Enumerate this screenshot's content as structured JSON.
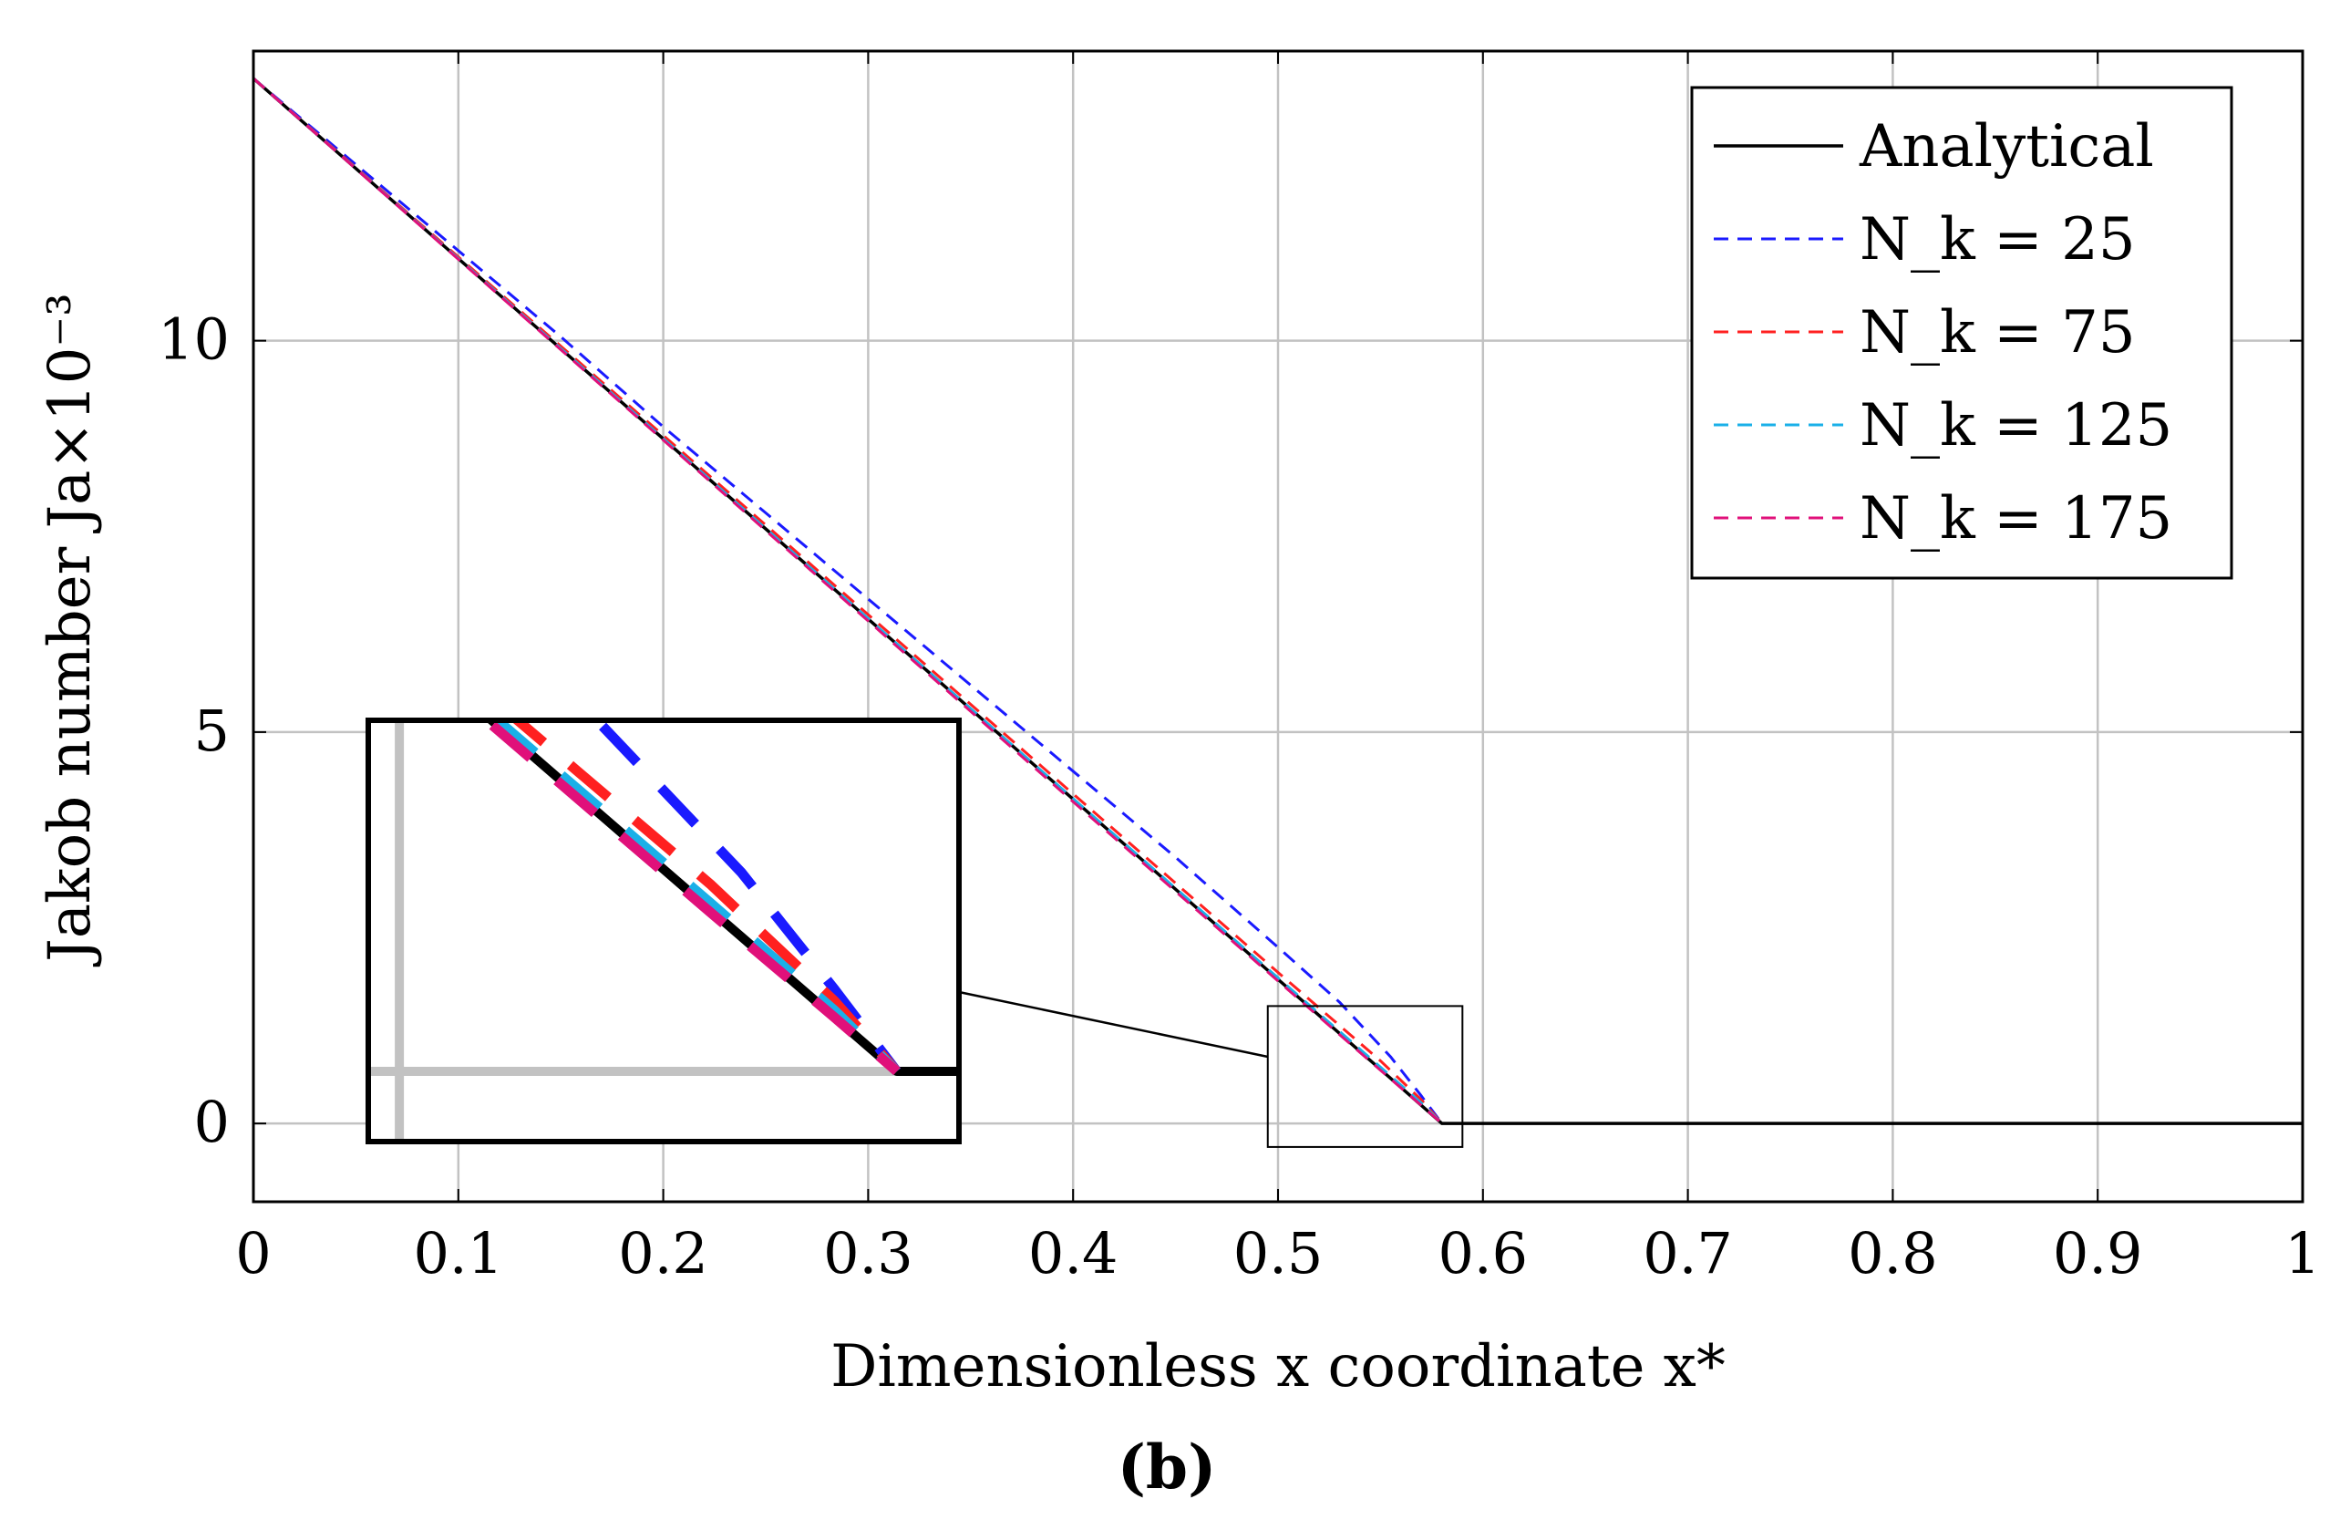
{
  "chart_data": {
    "type": "line",
    "xlabel": "Dimensionless x coordinate x*",
    "ylabel": "Jakob number Ja×10⁻³",
    "xlim": [
      0,
      1
    ],
    "ylim": [
      -1,
      13.7
    ],
    "grid": true,
    "x_ticks": [
      {
        "value": 0,
        "label": "0"
      },
      {
        "value": 0.1,
        "label": "0.1"
      },
      {
        "value": 0.2,
        "label": "0.2"
      },
      {
        "value": 0.3,
        "label": "0.3"
      },
      {
        "value": 0.4,
        "label": "0.4"
      },
      {
        "value": 0.5,
        "label": "0.5"
      },
      {
        "value": 0.6,
        "label": "0.6"
      },
      {
        "value": 0.7,
        "label": "0.7"
      },
      {
        "value": 0.8,
        "label": "0.8"
      },
      {
        "value": 0.9,
        "label": "0.9"
      },
      {
        "value": 1,
        "label": "1"
      }
    ],
    "y_ticks": [
      {
        "value": 0,
        "label": "0"
      },
      {
        "value": 5,
        "label": "5"
      },
      {
        "value": 10,
        "label": "10"
      }
    ],
    "legend_position": "top-right",
    "series": [
      {
        "name": "Analytical",
        "legend_label": "Analytical",
        "color": "#000000",
        "dash": "solid",
        "x": [
          0,
          0.58,
          1
        ],
        "y": [
          13.35,
          0,
          0
        ]
      },
      {
        "name": "N_k = 25",
        "legend_label": "N_k = 25",
        "color": "#1a1aff",
        "dash": "dashed",
        "x": [
          0,
          0.05,
          0.1,
          0.15,
          0.2,
          0.25,
          0.3,
          0.35,
          0.4,
          0.45,
          0.5,
          0.53,
          0.555,
          0.57,
          0.58
        ],
        "y": [
          13.35,
          12.25,
          11.15,
          10.05,
          8.9,
          7.8,
          6.7,
          5.6,
          4.5,
          3.4,
          2.25,
          1.55,
          0.85,
          0.35,
          0
        ]
      },
      {
        "name": "N_k = 75",
        "legend_label": "N_k = 75",
        "color": "#ff2020",
        "dash": "dashed",
        "x": [
          0,
          0.1,
          0.2,
          0.3,
          0.4,
          0.5,
          0.55,
          0.57,
          0.58
        ],
        "y": [
          13.35,
          11.07,
          8.79,
          6.5,
          4.21,
          1.93,
          0.8,
          0.3,
          0
        ]
      },
      {
        "name": "N_k = 125",
        "legend_label": "N_k = 125",
        "color": "#1ab0e8",
        "dash": "dashed",
        "x": [
          0,
          0.1,
          0.2,
          0.3,
          0.4,
          0.5,
          0.55,
          0.57,
          0.58
        ],
        "y": [
          13.35,
          11.05,
          8.75,
          6.45,
          4.15,
          1.86,
          0.72,
          0.26,
          0
        ]
      },
      {
        "name": "N_k = 175",
        "legend_label": "N_k = 175",
        "color": "#e0107a",
        "dash": "dashed",
        "x": [
          0,
          0.1,
          0.2,
          0.3,
          0.4,
          0.5,
          0.55,
          0.57,
          0.58
        ],
        "y": [
          13.35,
          11.04,
          8.73,
          6.42,
          4.11,
          1.82,
          0.68,
          0.23,
          0
        ]
      }
    ],
    "inset": {
      "zoom_x": [
        0.495,
        0.59
      ],
      "zoom_y": [
        -0.3,
        1.5
      ]
    },
    "caption": "(b)"
  }
}
